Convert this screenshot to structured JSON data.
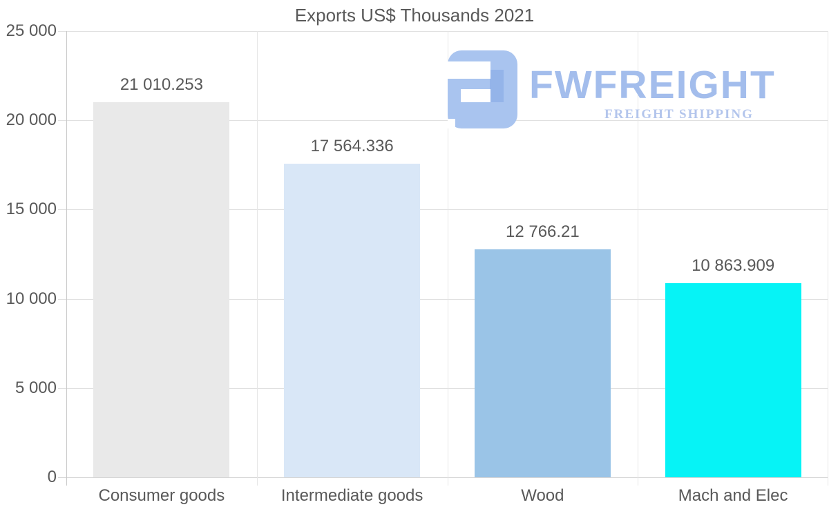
{
  "chart_data": {
    "type": "bar",
    "title": "Exports US$ Thousands 2021",
    "categories": [
      "Consumer goods",
      "Intermediate goods",
      "Wood",
      "Mach and Elec"
    ],
    "values": [
      21010.253,
      17564.336,
      12766.21,
      10863.909
    ],
    "value_labels": [
      "21 010.253",
      "17 564.336",
      "12 766.21",
      "10 863.909"
    ],
    "bar_colors": [
      "#e9e9e9",
      "#d9e7f7",
      "#9ac4e7",
      "#06f3f6"
    ],
    "xlabel": "",
    "ylabel": "",
    "ylim": [
      0,
      25000
    ],
    "ytick_step": 5000,
    "ytick_labels": [
      "0",
      "5 000",
      "10 000",
      "15 000",
      "20 000",
      "25 000"
    ],
    "grid": true,
    "legend": "none",
    "text_color": "#595959",
    "background": "#ffffff"
  },
  "watermark": {
    "icon": "fwfreight-logo-mark",
    "wordmark": "FWFREIGHT",
    "subtitle": "FREIGHT SHIPPING",
    "icon_color": "#a9c4ef",
    "icon_accent_color": "#94b4e9",
    "wordmark_color": "#a3bdec",
    "subtitle_color": "#b3c5ec"
  }
}
